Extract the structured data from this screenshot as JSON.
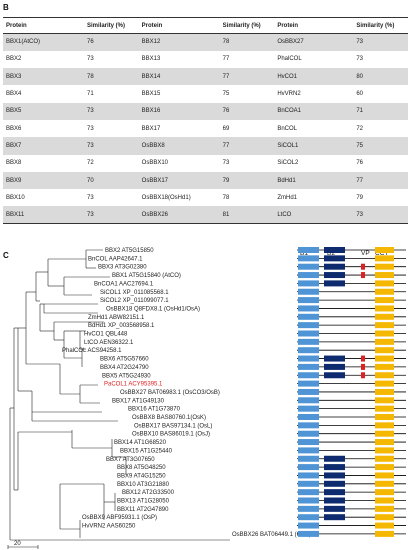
{
  "panel_b_label": "B",
  "panel_c_label": "C",
  "table": {
    "headers": [
      "Protein",
      "Similarity (%)",
      "Protein",
      "Similarity (%)",
      "Protein",
      "Similarity (%)"
    ],
    "rows": [
      [
        "BBX1(AtCO)",
        "76",
        "BBX12",
        "78",
        "OsBBX27",
        "73"
      ],
      [
        "BBX2",
        "73",
        "BBX13",
        "77",
        "PhalCOL",
        "73"
      ],
      [
        "BBX3",
        "78",
        "BBX14",
        "77",
        "HvCO1",
        "80"
      ],
      [
        "BBX4",
        "71",
        "BBX15",
        "75",
        "HvVRN2",
        "60"
      ],
      [
        "BBX5",
        "73",
        "BBX16",
        "76",
        "BnCOA1",
        "71"
      ],
      [
        "BBX6",
        "73",
        "BBX17",
        "69",
        "BnCOL",
        "72"
      ],
      [
        "BBX7",
        "73",
        "OsBBX8",
        "77",
        "SiCOL1",
        "75"
      ],
      [
        "BBX8",
        "72",
        "OsBBX10",
        "73",
        "SiCOL2",
        "76"
      ],
      [
        "BBX9",
        "70",
        "OsBBX17",
        "79",
        "BdHd1",
        "77"
      ],
      [
        "BBX10",
        "73",
        "OsBBX18(OsHd1)",
        "78",
        "ZmHd1",
        "79"
      ],
      [
        "BBX11",
        "73",
        "OsBBX26",
        "81",
        "LtCO",
        "73"
      ]
    ]
  },
  "tree": {
    "domain_headers": [
      "B1",
      "B2",
      "VP",
      "CCT"
    ],
    "scale_label": "20",
    "colors": {
      "b1": "#4f95d6",
      "b2": "#0d2b6e",
      "vp": "#e02020",
      "cct": "#f5b800",
      "highlight": "#e02020"
    },
    "leaves": [
      {
        "label": "BBX2 AT5G15850",
        "b2": true,
        "vp": false,
        "red": false
      },
      {
        "label": "BnCOL AAP42647.1",
        "b2": true,
        "vp": false,
        "red": false
      },
      {
        "label": "BBX3 AT3G02380",
        "b2": true,
        "vp": true,
        "red": false
      },
      {
        "label": "BBX1 AT5G15840 (AtCO)",
        "b2": true,
        "vp": true,
        "red": false
      },
      {
        "label": "BnCOA1 AAC27694.1",
        "b2": true,
        "vp": false,
        "red": false
      },
      {
        "label": "SiCOL1 XP_011085568.1",
        "b2": false,
        "vp": false,
        "red": false
      },
      {
        "label": "SiCOL2 XP_011099077.1",
        "b2": false,
        "vp": false,
        "red": false
      },
      {
        "label": "OsBBX18 Q8FDX8.1 (OsHd1/OsA)",
        "b2": false,
        "vp": false,
        "red": false
      },
      {
        "label": "ZmHd1 ABW82151.1",
        "b2": false,
        "vp": false,
        "red": false
      },
      {
        "label": "BdHd1 XP_003568958.1",
        "b2": false,
        "vp": false,
        "red": false
      },
      {
        "label": "HvCO1 QBL448",
        "b2": false,
        "vp": false,
        "red": false
      },
      {
        "label": "LtCO AEN36322.1",
        "b2": false,
        "vp": false,
        "red": false
      },
      {
        "label": "PhalCOL ACS94258.1",
        "b2": false,
        "vp": false,
        "red": false
      },
      {
        "label": "BBX6 AT5G57660",
        "b2": true,
        "vp": true,
        "red": false
      },
      {
        "label": "BBX4 AT2G24790",
        "b2": true,
        "vp": true,
        "red": false
      },
      {
        "label": "BBX5 AT5G24930",
        "b2": true,
        "vp": true,
        "red": false
      },
      {
        "label": "PaCOL1 ACY95395.1",
        "b2": false,
        "vp": false,
        "red": true
      },
      {
        "label": "OsBBX27 BAT06983.1 (OsCO3/OsB)",
        "b2": false,
        "vp": false,
        "red": false
      },
      {
        "label": "BBX17 AT1G49130",
        "b2": false,
        "vp": false,
        "red": false
      },
      {
        "label": "BBX16 AT1G73870",
        "b2": false,
        "vp": false,
        "red": false
      },
      {
        "label": "OsBBX8 BAS80760.1(OsK)",
        "b2": false,
        "vp": false,
        "red": false
      },
      {
        "label": "OsBBX17 BAS97134.1 (OsL)",
        "b2": false,
        "vp": false,
        "red": false
      },
      {
        "label": "OsBBX10 BAS86019.1 (OsJ)",
        "b2": false,
        "vp": false,
        "red": false
      },
      {
        "label": "BBX14 AT1G68520",
        "b2": false,
        "vp": false,
        "red": false
      },
      {
        "label": "BBX15 AT1G25440",
        "b2": false,
        "vp": false,
        "red": false
      },
      {
        "label": "BBX7 AT3G07650",
        "b2": true,
        "vp": false,
        "red": false
      },
      {
        "label": "BBX8 AT5G48250",
        "b2": true,
        "vp": false,
        "red": false
      },
      {
        "label": "BBX9 AT4G15250",
        "b2": true,
        "vp": false,
        "red": false
      },
      {
        "label": "BBX10 AT3G21880",
        "b2": true,
        "vp": false,
        "red": false
      },
      {
        "label": "BBX12 AT2G33500",
        "b2": true,
        "vp": false,
        "red": false
      },
      {
        "label": "BBX13 AT1G28050",
        "b2": true,
        "vp": false,
        "red": false
      },
      {
        "label": "BBX11 AT2G47890",
        "b2": true,
        "vp": false,
        "red": false
      },
      {
        "label": "OsBBX9 ABF95931.1 (OsP)",
        "b2": true,
        "vp": false,
        "red": false
      },
      {
        "label": "HvVRN2 AAS60250",
        "b2": false,
        "vp": false,
        "red": false
      },
      {
        "label": "OsBBX26 BAT06449.1 (OsO)",
        "b2": false,
        "vp": false,
        "red": false
      }
    ]
  }
}
